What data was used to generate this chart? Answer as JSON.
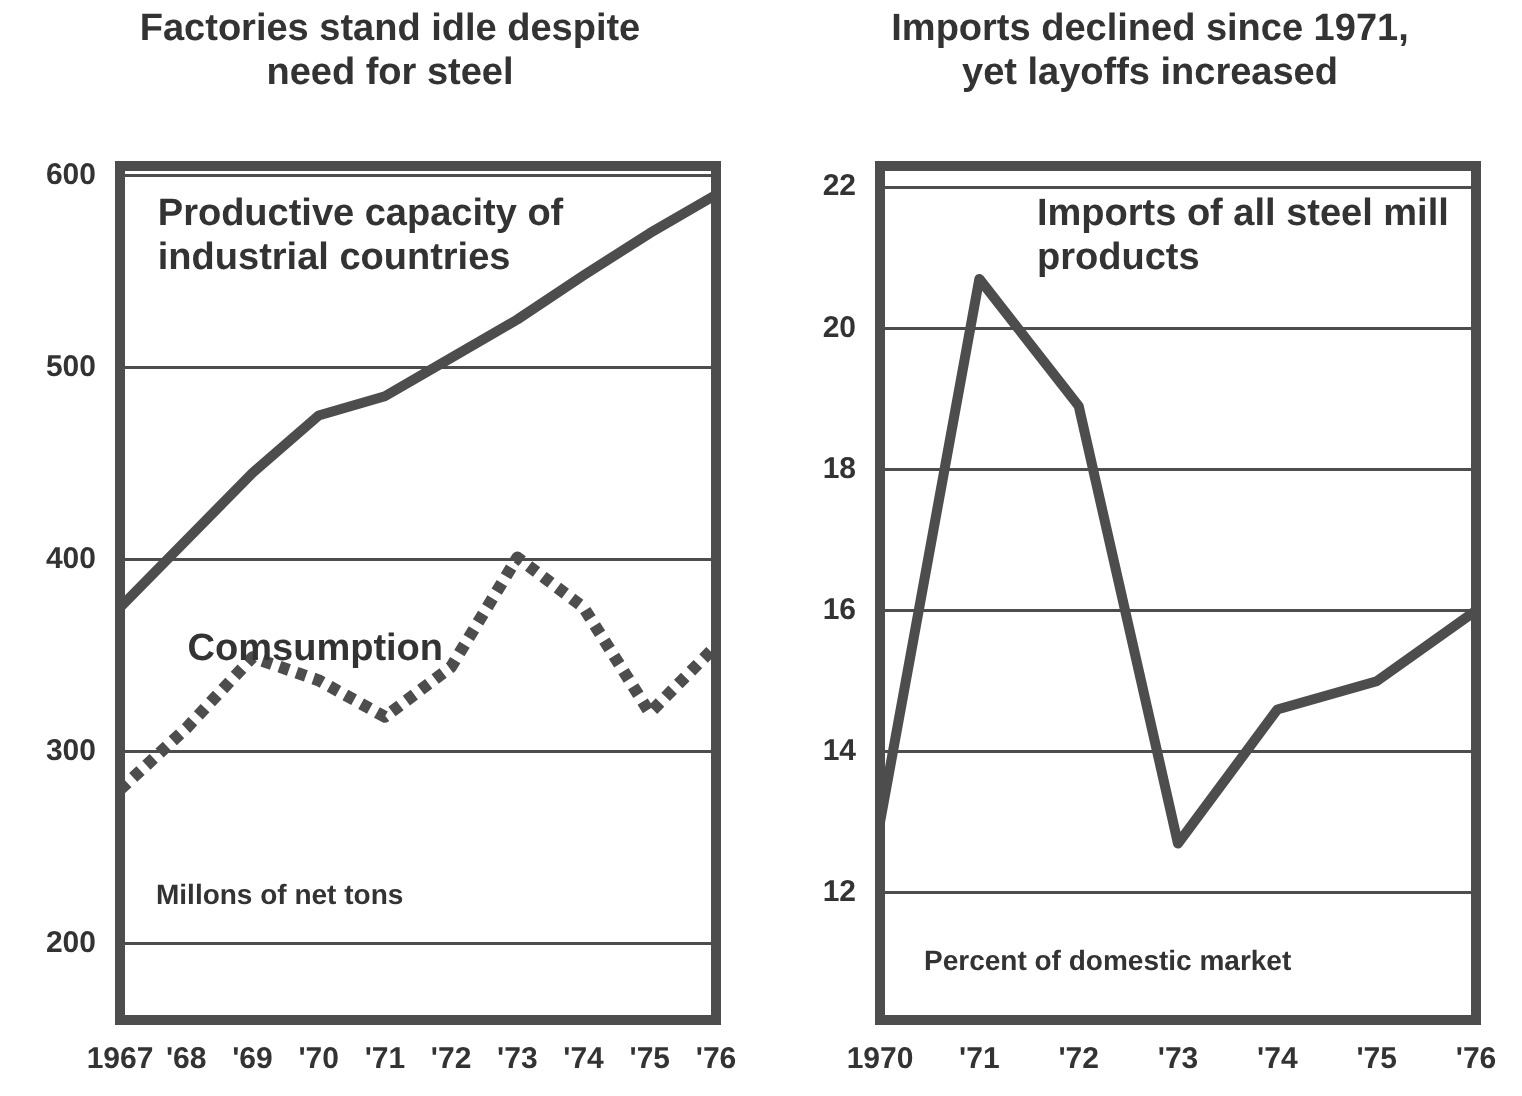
{
  "chart_data": [
    {
      "type": "line",
      "title": "Factories stand idle despite need for steel",
      "ylabel": "Millons of net tons",
      "categories": [
        "1967",
        "'68",
        "'69",
        "'70",
        "'71",
        "'72",
        "'73",
        "'74",
        "'75",
        "'76"
      ],
      "series": [
        {
          "name": "Productive capacity of industrial countries",
          "color": "#4d4d4d",
          "line_style": "solid",
          "values": [
            375,
            410,
            445,
            475,
            485,
            505,
            525,
            548,
            570,
            590
          ]
        },
        {
          "name": "Comsumption",
          "color": "#4d4d4d",
          "line_style": "dotted",
          "values": [
            280,
            312,
            349,
            337,
            318,
            344,
            401,
            375,
            320,
            355
          ]
        }
      ],
      "ylim": [
        160,
        605
      ],
      "yticks": [
        200,
        300,
        400,
        500,
        600
      ],
      "grid": "y",
      "legend": false,
      "marker": "none"
    },
    {
      "type": "line",
      "title": "Imports declined since 1971, yet layoffs increased",
      "ylabel": "Percent of domestic market",
      "categories": [
        "1970",
        "'71",
        "'72",
        "'73",
        "'74",
        "'75",
        "'76"
      ],
      "series": [
        {
          "name": "Imports of all steel mill products",
          "color": "#4d4d4d",
          "line_style": "solid",
          "values": [
            13.0,
            20.7,
            18.9,
            12.7,
            14.6,
            15.0,
            16.0
          ]
        }
      ],
      "ylim": [
        10.2,
        22.3
      ],
      "yticks": [
        12,
        14,
        16,
        18,
        20,
        22
      ],
      "grid": "y",
      "legend": false,
      "marker": "none"
    }
  ]
}
